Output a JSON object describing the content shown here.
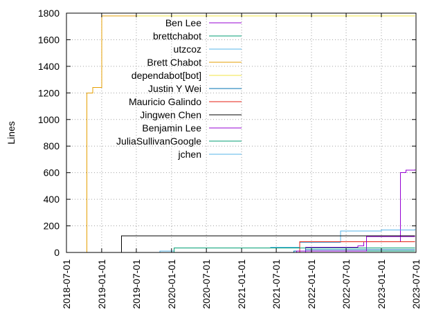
{
  "chart_data": {
    "type": "line",
    "title": "",
    "xlabel": "",
    "ylabel": "Lines",
    "ylim": [
      0,
      1800
    ],
    "xlim": [
      "2018-07-01",
      "2023-07-01"
    ],
    "grid": true,
    "legend_position": "top-left (inside plot)",
    "y_ticks": [
      "0",
      "200",
      "400",
      "600",
      "800",
      "1000",
      "1200",
      "1400",
      "1600",
      "1800"
    ],
    "x_ticks": [
      "2018-07-01",
      "2019-01-01",
      "2019-07-01",
      "2020-01-01",
      "2020-07-01",
      "2021-01-01",
      "2021-07-01",
      "2022-01-01",
      "2022-07-01",
      "2023-01-01",
      "2023-07-01"
    ],
    "series": [
      {
        "name": "Ben Lee",
        "color": "#9400d3",
        "x": [
          "2021-06-15",
          "2021-12-01",
          "2022-07-01",
          "2022-09-01",
          "2022-10-01",
          "2023-04-01",
          "2023-04-10",
          "2023-05-10",
          "2023-06-25"
        ],
        "y": [
          0,
          40,
          40,
          50,
          80,
          80,
          600,
          620,
          625
        ]
      },
      {
        "name": "brettchabot",
        "color": "#009e73",
        "x": [
          "2021-08-01",
          "2022-01-01",
          "2023-06-25"
        ],
        "y": [
          0,
          10,
          10
        ]
      },
      {
        "name": "utzcoz",
        "color": "#56b4e9",
        "x": [
          "2019-03-01",
          "2019-11-01",
          "2020-01-15",
          "2021-06-01",
          "2021-11-01",
          "2022-06-01",
          "2022-10-01",
          "2023-01-01",
          "2023-06-25"
        ],
        "y": [
          0,
          10,
          35,
          40,
          75,
          160,
          160,
          170,
          175
        ]
      },
      {
        "name": "Brett Chabot",
        "color": "#e69f00",
        "x": [
          "2018-09-15",
          "2018-10-15",
          "2018-11-15",
          "2019-01-01",
          "2023-06-25"
        ],
        "y": [
          0,
          1200,
          1240,
          1780,
          1780
        ]
      },
      {
        "name": "dependabot[bot]",
        "color": "#f0e442",
        "x": [
          "2019-07-01",
          "2023-06-25"
        ],
        "y": [
          1780,
          1780
        ]
      },
      {
        "name": "Justin Y Wei",
        "color": "#0072b2",
        "x": [
          "2019-07-01",
          "2021-10-01",
          "2021-12-01",
          "2023-06-25"
        ],
        "y": [
          0,
          10,
          20,
          20
        ]
      },
      {
        "name": "Mauricio Galindo",
        "color": "#e51e10",
        "x": [
          "2021-10-01",
          "2021-11-01",
          "2023-06-25"
        ],
        "y": [
          0,
          80,
          80
        ]
      },
      {
        "name": "Jingwen Chen",
        "color": "#000000",
        "x": [
          "2019-04-01",
          "2019-04-15",
          "2023-06-25"
        ],
        "y": [
          0,
          125,
          125
        ]
      },
      {
        "name": "Benjamin Lee",
        "color": "#9400d3",
        "x": [
          "2021-02-01",
          "2021-10-15",
          "2022-10-15",
          "2023-06-25"
        ],
        "y": [
          0,
          10,
          120,
          120
        ]
      },
      {
        "name": "JuliaSullivanGoogle",
        "color": "#009e73",
        "x": [
          "2019-12-01",
          "2020-01-15",
          "2023-06-25"
        ],
        "y": [
          0,
          35,
          35
        ]
      },
      {
        "name": "jchen",
        "color": "#56b4e9",
        "x": [
          "2019-07-01",
          "2023-06-25"
        ],
        "y": [
          0,
          2
        ]
      }
    ]
  }
}
